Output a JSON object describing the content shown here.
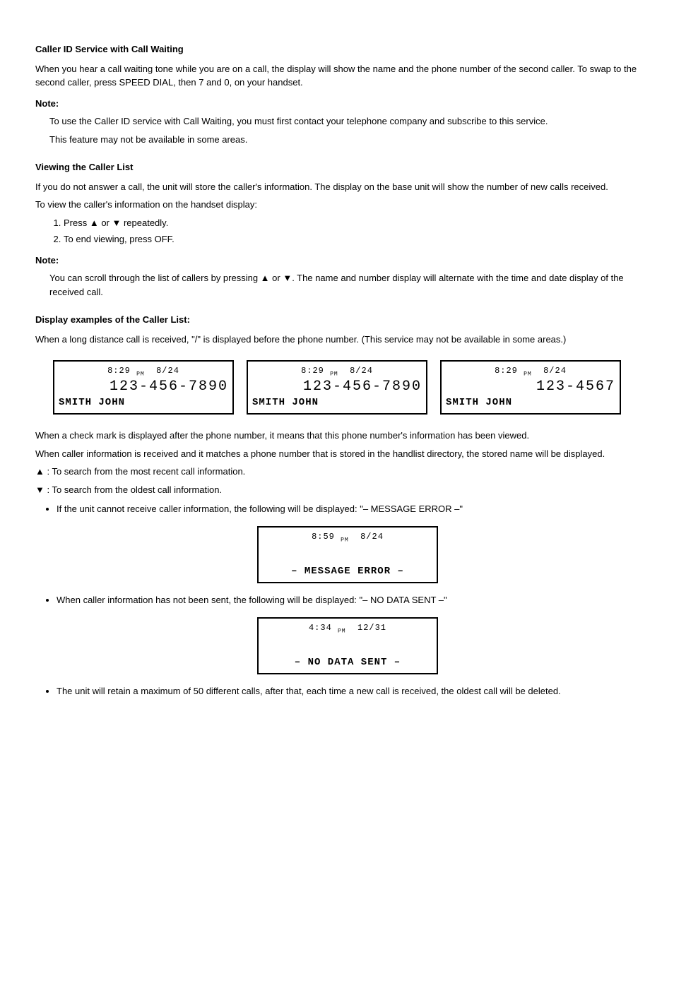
{
  "sections": {
    "cid": {
      "title": "Caller ID Service with Call Waiting",
      "body": "When you hear a call waiting tone while you are on a call, the display will show the name and the phone number of the second caller. To swap to the second caller, press SPEED DIAL, then 7 and 0, on your handset.",
      "note_label": "Note:",
      "note1": "To use the Caller ID service with Call Waiting, you must first contact your telephone company and subscribe to this service.",
      "note2": "This feature may not be available in some areas."
    },
    "log": {
      "title": "Viewing the Caller List",
      "p1": "If you do not answer a call, the unit will store the caller's information. The display on the base unit will show the number of new calls received.",
      "p2": "To view the caller's information on the handset display:",
      "steps": [
        "Press ▲ or ▼ repeatedly.",
        "To end viewing, press OFF."
      ],
      "note_label": "Note:",
      "scroll_note": "You can scroll through the list of callers by pressing ▲ or ▼. The name and number display will alternate with the time and date display of the received call."
    },
    "examples": {
      "title": "Display examples of the Caller List:",
      "longdist": "When a long distance call is received, \"/\" is displayed before the phone number. (This service may not be available in some areas.)"
    },
    "screens": {
      "a": {
        "time": "8:29",
        "ampm": "PM",
        "date": "8/24",
        "number": "123-456-7890",
        "name": "SMITH JOHN"
      },
      "b": {
        "time": "8:29",
        "ampm": "PM",
        "date": "8/24",
        "number": "123-456-7890",
        "name": "SMITH JOHN"
      },
      "c": {
        "time": "8:29",
        "ampm": "PM",
        "date": "8/24",
        "number": "123-4567",
        "name": "SMITH JOHN"
      }
    },
    "captions": {
      "longdist_check": "When a check mark is displayed after the phone number, it means that this phone number's information has been viewed.",
      "caller_info": "When caller information is received and it matches a phone number that is stored in the handlist directory, the stored name will be displayed."
    },
    "arrows": {
      "up_meaning": "▲ : To search from the most recent call information.",
      "down_meaning": "▼ : To search from the oldest call information."
    },
    "bullets": {
      "msg_error": "If the unit cannot receive caller information, the following will be displayed: \"– MESSAGE ERROR –\"",
      "msg_error_screen": {
        "time": "8:59",
        "ampm": "PM",
        "date": "8/24",
        "text": "– MESSAGE ERROR –"
      },
      "no_data": "When caller information has not been sent, the following will be displayed: \"– NO DATA SENT –\"",
      "no_data_screen": {
        "time": "4:34",
        "ampm": "PM",
        "date": "12/31",
        "text": "– NO DATA SENT –"
      },
      "max": "The unit will retain a maximum of 50 different calls, after that, each time a new call is received, the oldest call will be deleted."
    }
  }
}
